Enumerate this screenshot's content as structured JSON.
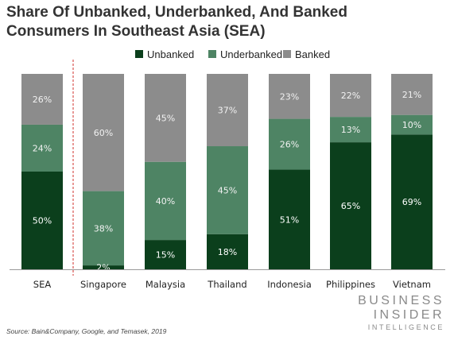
{
  "title": "Share Of Unbanked, Underbanked, And Banked Consumers In Southeast Asia (SEA)",
  "source": "Source: Bain&Company, Google, and Temasek, 2019",
  "brand": {
    "line1": "BUSINESS",
    "line2": "INSIDER",
    "line3": "INTELLIGENCE"
  },
  "colors": {
    "unbanked": "#0b3f1c",
    "underbanked": "#4e8464",
    "banked": "#8c8c8c",
    "divider": "#d9534f",
    "axis": "#9a9a9a"
  },
  "chart_data": {
    "type": "bar",
    "stacked": true,
    "title": "Share Of Unbanked, Underbanked, And Banked Consumers In Southeast Asia (SEA)",
    "categories": [
      "SEA",
      "Singapore",
      "Malaysia",
      "Thailand",
      "Indonesia",
      "Philippines",
      "Vietnam"
    ],
    "series": [
      {
        "name": "Unbanked",
        "key": "unbanked",
        "values": [
          50,
          2,
          15,
          18,
          51,
          65,
          69
        ],
        "labels": [
          "50%",
          "2%",
          "15%",
          "18%",
          "51%",
          "65%",
          "69%"
        ]
      },
      {
        "name": "Underbanked",
        "key": "underbanked",
        "values": [
          24,
          38,
          40,
          45,
          26,
          13,
          10
        ],
        "labels": [
          "24%",
          "38%",
          "40%",
          "45%",
          "26%",
          "13%",
          "10%"
        ]
      },
      {
        "name": "Banked",
        "key": "banked",
        "values": [
          26,
          60,
          45,
          37,
          23,
          22,
          21
        ],
        "labels": [
          "26%",
          "60%",
          "45%",
          "37%",
          "23%",
          "22%",
          "21%"
        ]
      }
    ],
    "ylim": [
      0,
      100
    ],
    "grid": false,
    "legend_position": "top-center"
  }
}
